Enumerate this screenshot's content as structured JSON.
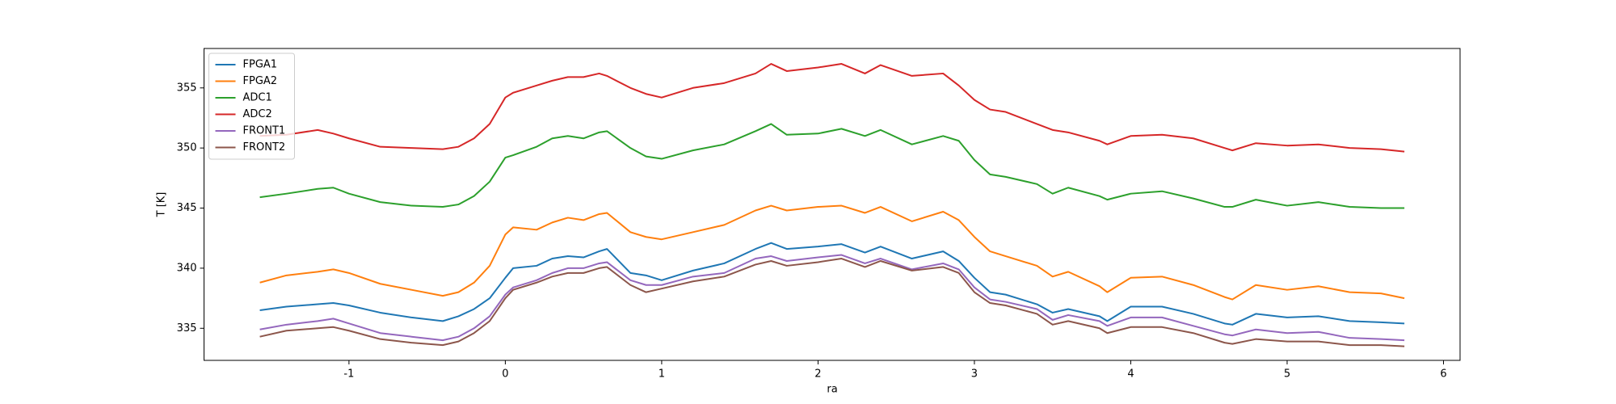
{
  "chart_data": {
    "type": "line",
    "x_label": "ra",
    "y_label": "T [K]",
    "legend": "upper left",
    "x": [
      -1.57,
      -1.4,
      -1.2,
      -1.1,
      -1.0,
      -0.8,
      -0.6,
      -0.4,
      -0.3,
      -0.2,
      -0.1,
      0.0,
      0.05,
      0.2,
      0.3,
      0.4,
      0.5,
      0.6,
      0.65,
      0.8,
      0.9,
      1.0,
      1.2,
      1.4,
      1.6,
      1.7,
      1.8,
      2.0,
      2.15,
      2.3,
      2.4,
      2.6,
      2.8,
      2.9,
      3.0,
      3.1,
      3.2,
      3.4,
      3.5,
      3.6,
      3.8,
      3.85,
      4.0,
      4.2,
      4.4,
      4.6,
      4.65,
      4.8,
      5.0,
      5.2,
      5.4,
      5.6,
      5.75
    ],
    "series": [
      {
        "name": "FPGA1",
        "color": "#1f77b4",
        "values": [
          336.5,
          336.8,
          337.0,
          337.1,
          336.9,
          336.3,
          335.9,
          335.6,
          336.0,
          336.6,
          337.5,
          339.2,
          340.0,
          340.2,
          340.8,
          341.0,
          340.9,
          341.4,
          341.6,
          339.6,
          339.4,
          339.0,
          339.8,
          340.4,
          341.6,
          342.1,
          341.6,
          341.8,
          342.0,
          341.3,
          341.8,
          340.8,
          341.4,
          340.6,
          339.2,
          338.0,
          337.8,
          337.0,
          336.3,
          336.6,
          336.0,
          335.6,
          336.8,
          336.8,
          336.2,
          335.4,
          335.3,
          336.2,
          335.9,
          336.0,
          335.6,
          335.5,
          335.4
        ]
      },
      {
        "name": "FPGA2",
        "color": "#ff7f0e",
        "values": [
          338.8,
          339.4,
          339.7,
          339.9,
          339.6,
          338.7,
          338.2,
          337.7,
          338.0,
          338.8,
          340.2,
          342.8,
          343.4,
          343.2,
          343.8,
          344.2,
          344.0,
          344.5,
          344.6,
          343.0,
          342.6,
          342.4,
          343.0,
          343.6,
          344.8,
          345.2,
          344.8,
          345.1,
          345.2,
          344.6,
          345.1,
          343.9,
          344.7,
          344.0,
          342.6,
          341.4,
          341.0,
          340.2,
          339.3,
          339.7,
          338.5,
          338.0,
          339.2,
          339.3,
          338.6,
          337.6,
          337.4,
          338.6,
          338.2,
          338.5,
          338.0,
          337.9,
          337.5
        ]
      },
      {
        "name": "ADC1",
        "color": "#2ca02c",
        "values": [
          345.9,
          346.2,
          346.6,
          346.7,
          346.2,
          345.5,
          345.2,
          345.1,
          345.3,
          346.0,
          347.2,
          349.2,
          349.4,
          350.1,
          350.8,
          351.0,
          350.8,
          351.3,
          351.4,
          350.0,
          349.3,
          349.1,
          349.8,
          350.3,
          351.4,
          352.0,
          351.1,
          351.2,
          351.6,
          351.0,
          351.5,
          350.3,
          351.0,
          350.6,
          349.0,
          347.8,
          347.6,
          347.0,
          346.2,
          346.7,
          346.0,
          345.7,
          346.2,
          346.4,
          345.8,
          345.1,
          345.1,
          345.7,
          345.2,
          345.5,
          345.1,
          345.0,
          345.0
        ]
      },
      {
        "name": "ADC2",
        "color": "#d62728",
        "values": [
          351.0,
          351.1,
          351.5,
          351.2,
          350.8,
          350.1,
          350.0,
          349.9,
          350.1,
          350.8,
          352.0,
          354.2,
          354.6,
          355.2,
          355.6,
          355.9,
          355.9,
          356.2,
          356.0,
          355.0,
          354.5,
          354.2,
          355.0,
          355.4,
          356.2,
          357.0,
          356.4,
          356.7,
          357.0,
          356.2,
          356.9,
          356.0,
          356.2,
          355.2,
          354.0,
          353.2,
          353.0,
          352.0,
          351.5,
          351.3,
          350.6,
          350.3,
          351.0,
          351.1,
          350.8,
          350.0,
          349.8,
          350.4,
          350.2,
          350.3,
          350.0,
          349.9,
          349.7
        ]
      },
      {
        "name": "FRONT1",
        "color": "#9467bd",
        "values": [
          334.9,
          335.3,
          335.6,
          335.8,
          335.4,
          334.6,
          334.3,
          334.0,
          334.3,
          335.0,
          336.0,
          337.8,
          338.4,
          339.0,
          339.6,
          340.0,
          340.0,
          340.4,
          340.5,
          339.0,
          338.6,
          338.6,
          339.3,
          339.6,
          340.8,
          341.0,
          340.6,
          340.9,
          341.1,
          340.4,
          340.8,
          339.9,
          340.4,
          339.9,
          338.4,
          337.4,
          337.2,
          336.6,
          335.7,
          336.1,
          335.6,
          335.2,
          335.9,
          335.9,
          335.2,
          334.5,
          334.4,
          334.9,
          334.6,
          334.7,
          334.2,
          334.1,
          334.0
        ]
      },
      {
        "name": "FRONT2",
        "color": "#8c564b",
        "values": [
          334.3,
          334.8,
          335.0,
          335.1,
          334.8,
          334.1,
          333.8,
          333.6,
          333.9,
          334.6,
          335.6,
          337.5,
          338.2,
          338.8,
          339.3,
          339.6,
          339.6,
          340.0,
          340.1,
          338.6,
          338.0,
          338.3,
          338.9,
          339.3,
          340.3,
          340.6,
          340.2,
          340.5,
          340.8,
          340.1,
          340.6,
          339.8,
          340.1,
          339.6,
          338.0,
          337.1,
          336.9,
          336.2,
          335.3,
          335.6,
          335.0,
          334.6,
          335.1,
          335.1,
          334.6,
          333.8,
          333.7,
          334.1,
          333.9,
          333.9,
          333.6,
          333.6,
          333.5
        ]
      }
    ],
    "xlim": [
      -1.927,
      6.106
    ],
    "xticks": [
      -1,
      0,
      1,
      2,
      3,
      4,
      5,
      6
    ],
    "ylim": [
      332.33,
      358.28
    ],
    "yticks": [
      335,
      340,
      345,
      350,
      355
    ]
  }
}
